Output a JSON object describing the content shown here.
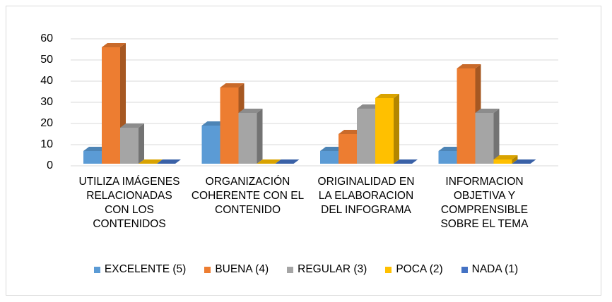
{
  "chart_data": {
    "type": "bar3d",
    "categories": [
      "UTILIZA IMÁGENES RELACIONADAS CON LOS CONTENIDOS",
      "ORGANIZACIÓN COHERENTE CON EL CONTENIDO",
      "ORIGINALIDAD EN LA ELABORACION DEL INFOGRAMA",
      "INFORMACION OBJETIVA Y COMPRENSIBLE SOBRE EL TEMA"
    ],
    "series": [
      {
        "name": "EXCELENTE (5)",
        "color": "#5b9bd5",
        "values": [
          7,
          19,
          7,
          7
        ]
      },
      {
        "name": "BUENA (4)",
        "color": "#ed7d31",
        "values": [
          56,
          37,
          15,
          46
        ]
      },
      {
        "name": "REGULAR (3)",
        "color": "#a5a5a5",
        "values": [
          18,
          25,
          27,
          25
        ]
      },
      {
        "name": "POCA (2)",
        "color": "#ffc000",
        "values": [
          0,
          0,
          32,
          3
        ]
      },
      {
        "name": "NADA (1)",
        "color": "#4472c4",
        "values": [
          0,
          0,
          0,
          0
        ]
      }
    ],
    "ylim": [
      0,
      60
    ],
    "yticks": [
      0,
      10,
      20,
      30,
      40,
      50,
      60
    ],
    "grid": true,
    "legend": "bottom"
  }
}
